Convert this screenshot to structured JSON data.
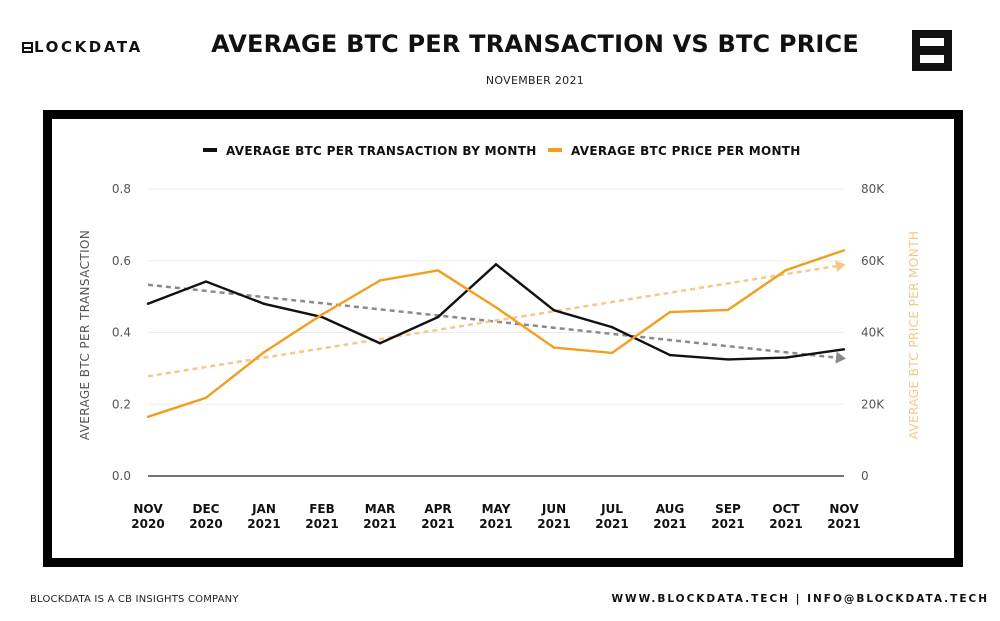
{
  "header": {
    "logo_text": "LOCKDATA",
    "title": "AVERAGE BTC PER TRANSACTION VS BTC PRICE",
    "subtitle": "NOVEMBER 2021"
  },
  "footer": {
    "left": "BLOCKDATA IS A CB INSIGHTS COMPANY",
    "right": "WWW.BLOCKDATA.TECH | INFO@BLOCKDATA.TECH"
  },
  "colors": {
    "btc_per_tx": "#111111",
    "btc_price": "#F0A020",
    "btc_per_tx_trend": "#8a8a8a",
    "btc_price_trend": "#F5C88A",
    "frame": "#000000",
    "grid": "#ececec"
  },
  "chart_data": {
    "type": "line",
    "categories": [
      [
        "NOV",
        "2020"
      ],
      [
        "DEC",
        "2020"
      ],
      [
        "JAN",
        "2021"
      ],
      [
        "FEB",
        "2021"
      ],
      [
        "MAR",
        "2021"
      ],
      [
        "APR",
        "2021"
      ],
      [
        "MAY",
        "2021"
      ],
      [
        "JUN",
        "2021"
      ],
      [
        "JUL",
        "2021"
      ],
      [
        "AUG",
        "2021"
      ],
      [
        "SEP",
        "2021"
      ],
      [
        "OCT",
        "2021"
      ],
      [
        "NOV",
        "2021"
      ]
    ],
    "series": [
      {
        "name": "AVERAGE BTC PER TRANSACTION BY MONTH",
        "axis": "left",
        "values": [
          0.48,
          0.542,
          0.48,
          0.443,
          0.37,
          0.443,
          0.59,
          0.462,
          0.415,
          0.337,
          0.325,
          0.33,
          0.353
        ]
      },
      {
        "name": "AVERAGE BTC PRICE PER MONTH",
        "axis": "right",
        "values": [
          16500,
          21800,
          34500,
          45000,
          54500,
          57300,
          47000,
          35800,
          34300,
          45700,
          46300,
          57400,
          62900
        ]
      }
    ],
    "trendlines": [
      {
        "series": "AVERAGE BTC PER TRANSACTION BY MONTH",
        "axis": "left",
        "values": [
          0.533,
          0.33
        ],
        "style": "dashed",
        "arrow": true
      },
      {
        "series": "AVERAGE BTC PRICE PER MONTH",
        "axis": "right",
        "values": [
          27800,
          58500
        ],
        "style": "dashed",
        "arrow": true
      }
    ],
    "y_left": {
      "label": "AVERAGE BTC PER TRANSACTION",
      "ylim": [
        0,
        0.8
      ],
      "ticks": [
        "0.0",
        "0.2",
        "0.4",
        "0.6",
        "0.8"
      ]
    },
    "y_right": {
      "label": "AVERAGE BTC PRICE PER MONTH",
      "ylim": [
        0,
        80000
      ],
      "ticks": [
        "0",
        "20K",
        "40K",
        "60K",
        "80K"
      ]
    },
    "legend_position": "top-center",
    "grid": true
  }
}
